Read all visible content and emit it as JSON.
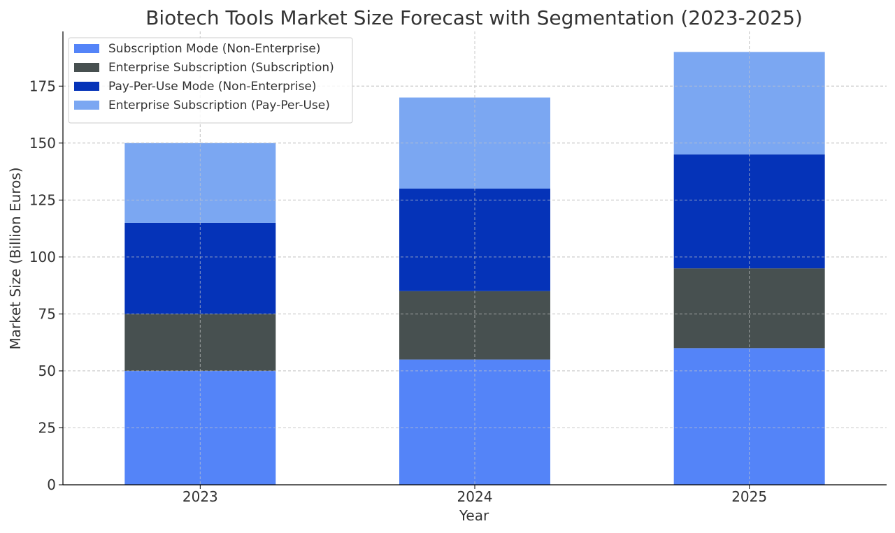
{
  "chart_data": {
    "type": "bar",
    "stacked": true,
    "title": "Biotech Tools Market Size Forecast with Segmentation (2023-2025)",
    "xlabel": "Year",
    "ylabel": "Market Size (Billion Euros)",
    "categories": [
      "2023",
      "2024",
      "2025"
    ],
    "ylim": [
      0,
      199
    ],
    "yticks": [
      0,
      25,
      50,
      75,
      100,
      125,
      150,
      175
    ],
    "grid": true,
    "legend_position": "top-left",
    "series": [
      {
        "name": "Subscription Mode (Non-Enterprise)",
        "color": "#5484f8",
        "values": [
          50,
          55,
          60
        ]
      },
      {
        "name": "Enterprise Subscription (Subscription)",
        "color": "#475050",
        "values": [
          25,
          30,
          35
        ]
      },
      {
        "name": "Pay-Per-Use Mode (Non-Enterprise)",
        "color": "#0533b8",
        "values": [
          40,
          45,
          50
        ]
      },
      {
        "name": "Enterprise Subscription (Pay-Per-Use)",
        "color": "#7ba7f2",
        "values": [
          35,
          40,
          45
        ]
      }
    ]
  }
}
